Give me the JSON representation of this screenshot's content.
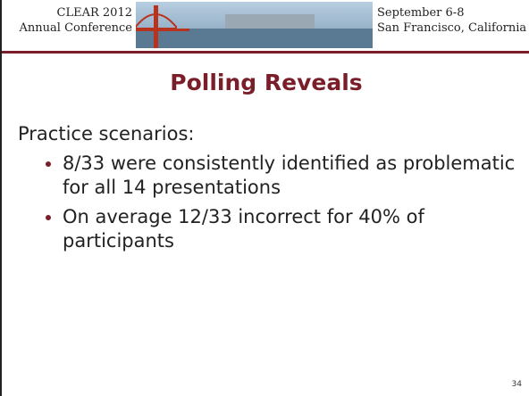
{
  "header": {
    "left": [
      "CLEAR 2012",
      "Annual Conference"
    ],
    "right": [
      "September 6-8",
      "San Francisco, California"
    ]
  },
  "title": "Polling Reveals",
  "body": {
    "lead": "Practice scenarios:",
    "bullets": [
      "8/33 were consistently identified as problematic for all 14 presentations",
      "On average 12/33 incorrect for 40% of participants"
    ]
  },
  "page_number": "34"
}
